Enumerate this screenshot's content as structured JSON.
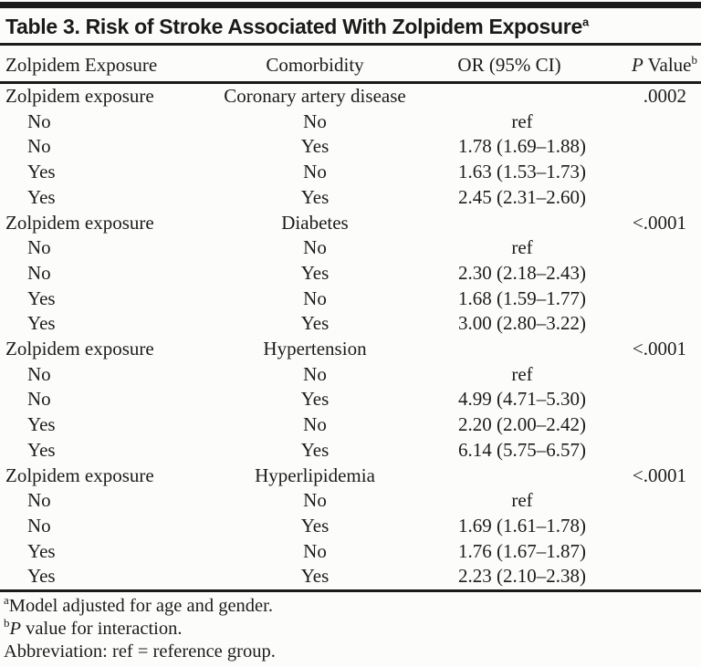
{
  "table": {
    "title": "Table 3. Risk of Stroke Associated With Zolpidem Exposure",
    "title_sup": "a",
    "columns": [
      "Zolpidem Exposure",
      "Comorbidity",
      "OR (95% CI)"
    ],
    "p_value_column": {
      "italic": "P",
      "label": " Value",
      "sup": "b"
    },
    "sections": [
      {
        "label": "Zolpidem exposure",
        "comorbidity": "Coronary artery disease",
        "p_value": ".0002",
        "rows": [
          {
            "exposure": "No",
            "comorbidity": "No",
            "or_ci": "ref"
          },
          {
            "exposure": "No",
            "comorbidity": "Yes",
            "or_ci": "1.78 (1.69–1.88)"
          },
          {
            "exposure": "Yes",
            "comorbidity": "No",
            "or_ci": "1.63 (1.53–1.73)"
          },
          {
            "exposure": "Yes",
            "comorbidity": "Yes",
            "or_ci": "2.45 (2.31–2.60)"
          }
        ]
      },
      {
        "label": "Zolpidem exposure",
        "comorbidity": "Diabetes",
        "p_value": "<.0001",
        "rows": [
          {
            "exposure": "No",
            "comorbidity": "No",
            "or_ci": "ref"
          },
          {
            "exposure": "No",
            "comorbidity": "Yes",
            "or_ci": "2.30 (2.18–2.43)"
          },
          {
            "exposure": "Yes",
            "comorbidity": "No",
            "or_ci": "1.68 (1.59–1.77)"
          },
          {
            "exposure": "Yes",
            "comorbidity": "Yes",
            "or_ci": "3.00 (2.80–3.22)"
          }
        ]
      },
      {
        "label": "Zolpidem exposure",
        "comorbidity": "Hypertension",
        "p_value": "<.0001",
        "rows": [
          {
            "exposure": "No",
            "comorbidity": "No",
            "or_ci": "ref"
          },
          {
            "exposure": "No",
            "comorbidity": "Yes",
            "or_ci": "4.99 (4.71–5.30)"
          },
          {
            "exposure": "Yes",
            "comorbidity": "No",
            "or_ci": "2.20 (2.00–2.42)"
          },
          {
            "exposure": "Yes",
            "comorbidity": "Yes",
            "or_ci": "6.14 (5.75–6.57)"
          }
        ]
      },
      {
        "label": "Zolpidem exposure",
        "comorbidity": "Hyperlipidemia",
        "p_value": "<.0001",
        "rows": [
          {
            "exposure": "No",
            "comorbidity": "No",
            "or_ci": "ref"
          },
          {
            "exposure": "No",
            "comorbidity": "Yes",
            "or_ci": "1.69 (1.61–1.78)"
          },
          {
            "exposure": "Yes",
            "comorbidity": "No",
            "or_ci": "1.76 (1.67–1.87)"
          },
          {
            "exposure": "Yes",
            "comorbidity": "Yes",
            "or_ci": "2.23 (2.10–2.38)"
          }
        ]
      }
    ],
    "footnotes": [
      {
        "sup": "a",
        "text": "Model adjusted for age and gender."
      },
      {
        "sup": "b",
        "italic": "P",
        "text": " value for interaction."
      },
      {
        "text": "Abbreviation: ref = reference group."
      }
    ]
  }
}
